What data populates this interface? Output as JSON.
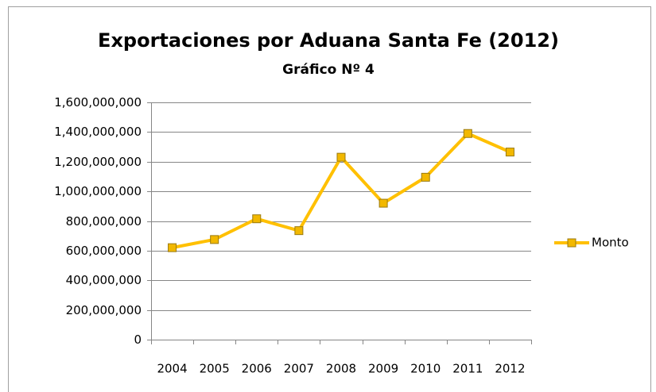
{
  "chart_data": {
    "type": "line",
    "title": "Exportaciones por Aduana Santa Fe (2012)",
    "subtitle": "Gráfico Nº 4",
    "categories": [
      "2004",
      "2005",
      "2006",
      "2007",
      "2008",
      "2009",
      "2010",
      "2011",
      "2012"
    ],
    "series": [
      {
        "name": "Monto",
        "color": "#FFC000",
        "marker_color": "#F2B800",
        "values": [
          620000000,
          675000000,
          815000000,
          735000000,
          1230000000,
          920000000,
          1095000000,
          1390000000,
          1265000000
        ]
      }
    ],
    "ylim": [
      0,
      1600000000
    ],
    "yticks": [
      0,
      {
        "value": 200000000,
        "label": "200,000,000"
      },
      {
        "value": 400000000,
        "label": "400,000,000"
      },
      {
        "value": 600000000,
        "label": "600,000,000"
      },
      {
        "value": 800000000,
        "label": "800,000,000"
      },
      {
        "value": 1000000000,
        "label": "1,000,000,000"
      },
      {
        "value": 1200000000,
        "label": "1,200,000,000"
      },
      {
        "value": 1400000000,
        "label": "1,400,000,000"
      },
      {
        "value": 1600000000,
        "label": "1,600,000,000"
      }
    ],
    "grid": true,
    "legend": "right"
  }
}
